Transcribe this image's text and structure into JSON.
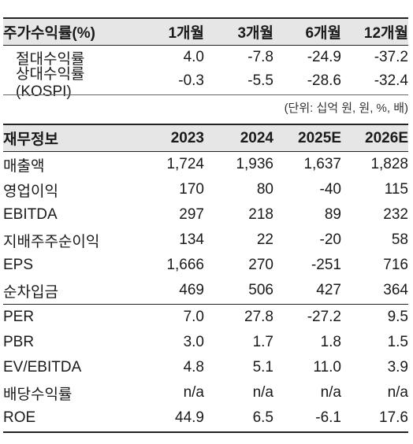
{
  "stock_returns": {
    "header": [
      "주가수익률(%)",
      "1개월",
      "3개월",
      "6개월",
      "12개월"
    ],
    "rows": [
      [
        "절대수익률",
        "4.0",
        "-7.8",
        "-24.9",
        "-37.2"
      ],
      [
        "상대수익률(KOSPI)",
        "-0.3",
        "-5.5",
        "-28.6",
        "-32.4"
      ]
    ]
  },
  "unit_note": "(단위: 십억 원, 원, %, 배)",
  "financials": {
    "header": [
      "재무정보",
      "2023",
      "2024",
      "2025E",
      "2026E"
    ],
    "rows": [
      [
        "매출액",
        "1,724",
        "1,936",
        "1,637",
        "1,828"
      ],
      [
        "영업이익",
        "170",
        "80",
        "-40",
        "115"
      ],
      [
        "EBITDA",
        "297",
        "218",
        "89",
        "232"
      ],
      [
        "지배주주순이익",
        "134",
        "22",
        "-20",
        "58"
      ],
      [
        "EPS",
        "1,666",
        "270",
        "-251",
        "716"
      ],
      [
        "순차입금",
        "469",
        "506",
        "427",
        "364"
      ],
      [
        "PER",
        "7.0",
        "27.8",
        "-27.2",
        "9.5"
      ],
      [
        "PBR",
        "3.0",
        "1.7",
        "1.8",
        "1.5"
      ],
      [
        "EV/EBITDA",
        "4.8",
        "5.1",
        "11.0",
        "3.9"
      ],
      [
        "배당수익률",
        "n/a",
        "n/a",
        "n/a",
        "n/a"
      ],
      [
        "ROE",
        "44.9",
        "6.5",
        "-6.1",
        "17.6"
      ]
    ]
  }
}
